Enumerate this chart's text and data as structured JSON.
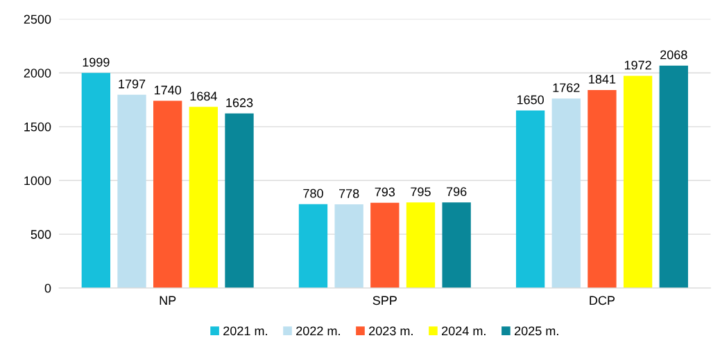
{
  "chart_data": {
    "type": "bar",
    "categories": [
      "NP",
      "SPP",
      "DCP"
    ],
    "series": [
      {
        "name": "2021 m.",
        "color": "#17c0dc",
        "values": [
          1999,
          780,
          1650
        ]
      },
      {
        "name": "2022 m.",
        "color": "#bde0f0",
        "values": [
          1797,
          778,
          1762
        ]
      },
      {
        "name": "2023 m.",
        "color": "#ff5a2e",
        "values": [
          1740,
          793,
          1841
        ]
      },
      {
        "name": "2024 m.",
        "color": "#ffff00",
        "values": [
          1684,
          795,
          1972
        ]
      },
      {
        "name": "2025 m.",
        "color": "#0a8799",
        "values": [
          1623,
          796,
          2068
        ]
      }
    ],
    "ylim": [
      0,
      2500
    ],
    "yticks": [
      0,
      500,
      1000,
      1500,
      2000,
      2500
    ],
    "grid": "y",
    "legend": "bottom",
    "data_labels": true
  }
}
